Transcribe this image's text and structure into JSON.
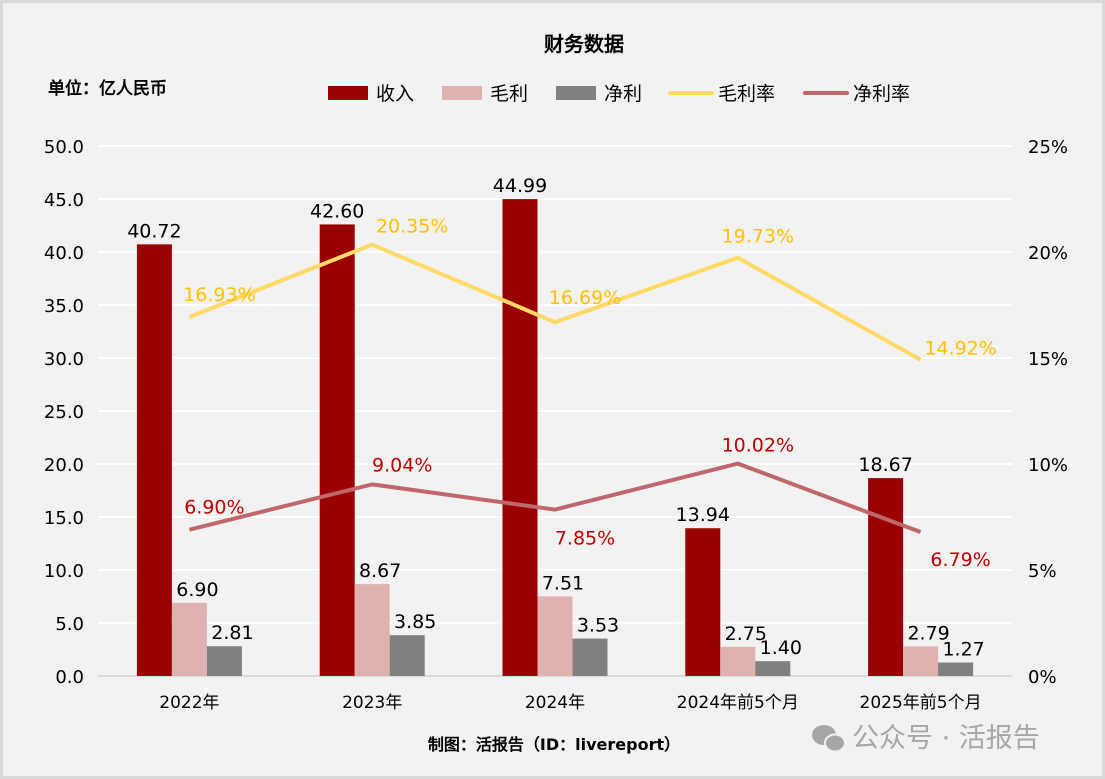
{
  "chart_data": {
    "type": "bar",
    "title": "财务数据",
    "unit_label": "单位：亿人民币",
    "categories": [
      "2022年",
      "2023年",
      "2024年",
      "2024年前5个月",
      "2025年前5个月"
    ],
    "series": [
      {
        "name": "收入",
        "kind": "bar",
        "axis": "left",
        "color": "#990000",
        "values": [
          40.72,
          42.6,
          44.99,
          13.94,
          18.67
        ],
        "labels": [
          "40.72",
          "42.60",
          "44.99",
          "13.94",
          "18.67"
        ]
      },
      {
        "name": "毛利",
        "kind": "bar",
        "axis": "left",
        "color": "#e0b1b1",
        "values": [
          6.9,
          8.67,
          7.51,
          2.75,
          2.79
        ],
        "labels": [
          "6.90",
          "8.67",
          "7.51",
          "2.75",
          "2.79"
        ]
      },
      {
        "name": "净利",
        "kind": "bar",
        "axis": "left",
        "color": "#808080",
        "values": [
          2.81,
          3.85,
          3.53,
          1.4,
          1.27
        ],
        "labels": [
          "2.81",
          "3.85",
          "3.53",
          "1.40",
          "1.27"
        ]
      },
      {
        "name": "毛利率",
        "kind": "line",
        "axis": "right",
        "color": "#ffd966",
        "label_color": "#ffc000",
        "values": [
          16.93,
          20.35,
          16.69,
          19.73,
          14.92
        ],
        "labels": [
          "16.93%",
          "20.35%",
          "16.69%",
          "19.73%",
          "14.92%"
        ]
      },
      {
        "name": "净利率",
        "kind": "line",
        "axis": "right",
        "color": "#c0676b",
        "label_color": "#c00000",
        "values": [
          6.9,
          9.04,
          7.85,
          10.02,
          6.79
        ],
        "labels": [
          "6.90%",
          "9.04%",
          "7.85%",
          "10.02%",
          "6.79%"
        ]
      }
    ],
    "y_left": {
      "min": 0,
      "max": 50,
      "step": 5,
      "ticks": [
        "0.0",
        "5.0",
        "10.0",
        "15.0",
        "20.0",
        "25.0",
        "30.0",
        "35.0",
        "40.0",
        "45.0",
        "50.0"
      ]
    },
    "y_right": {
      "min": 0,
      "max": 25,
      "step": 5,
      "ticks": [
        "0%",
        "5%",
        "10%",
        "15%",
        "20%",
        "25%"
      ]
    },
    "grid": true,
    "legend_position": "top",
    "footer": "制图：活报告（ID：livereport）",
    "watermark": "公众号 · 活报告"
  }
}
